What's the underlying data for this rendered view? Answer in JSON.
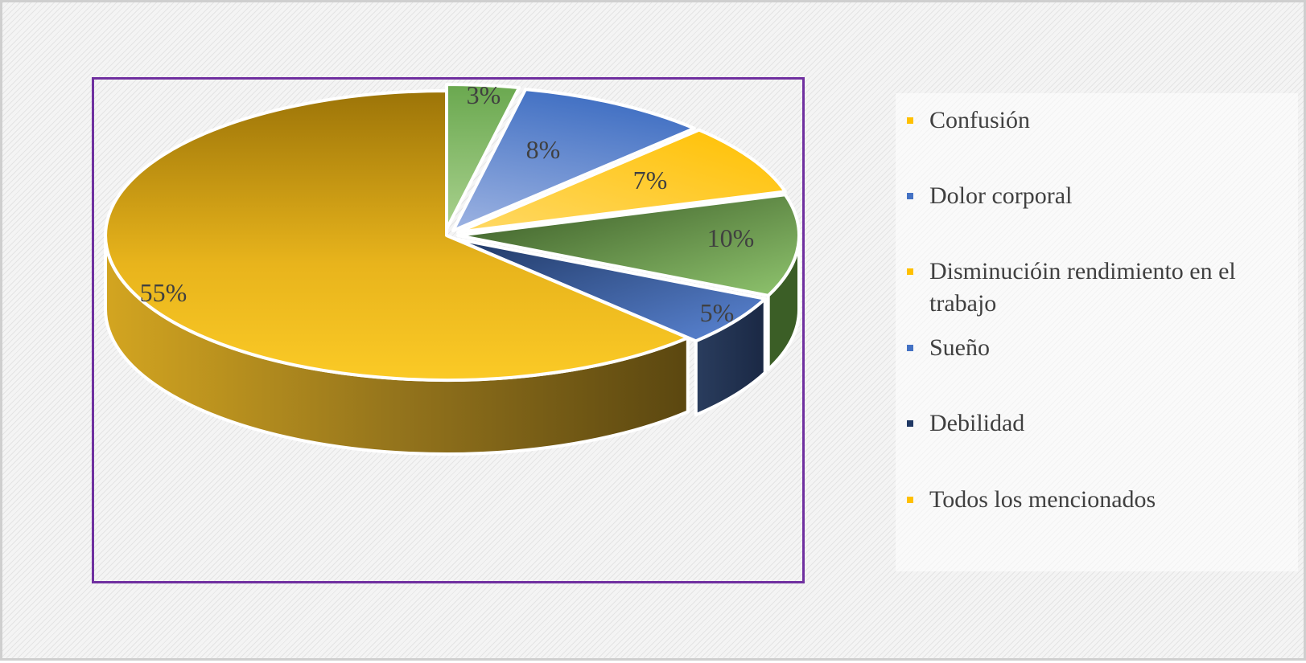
{
  "chart_data": {
    "type": "pie",
    "categories": [
      "Confusión",
      "Dolor corporal",
      "Disminucióin rendimiento en el trabajo",
      "Sueño",
      "Debilidad",
      "Todos los mencionados"
    ],
    "values": [
      3,
      8,
      7,
      10,
      5,
      55
    ],
    "labels": [
      "3%",
      "8%",
      "7%",
      "10%",
      "5%",
      "55%"
    ],
    "colors": [
      "#70ad47",
      "#4472c4",
      "#ffc000",
      "#548235",
      "#2f5597",
      "#f2bd1c"
    ],
    "title": "",
    "legend_position": "right"
  }
}
